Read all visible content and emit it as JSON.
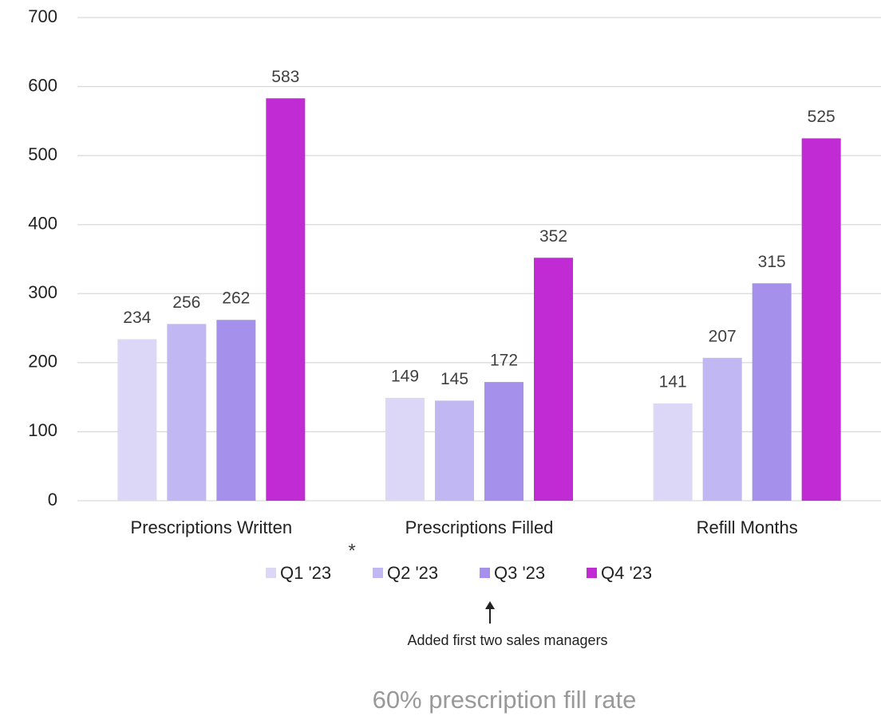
{
  "chart_data": {
    "type": "bar",
    "categories": [
      "Prescriptions Written",
      "Prescriptions Filled",
      "Refill Months"
    ],
    "series": [
      {
        "name": "Q1 '23",
        "color": "#dcd7f7",
        "values": [
          234,
          149,
          141
        ]
      },
      {
        "name": "Q2 '23",
        "color": "#c1b7f2",
        "values": [
          256,
          145,
          207
        ]
      },
      {
        "name": "Q3 '23",
        "color": "#a590ec",
        "values": [
          262,
          172,
          315
        ]
      },
      {
        "name": "Q4 '23",
        "color": "#c12bd3",
        "values": [
          583,
          352,
          525
        ]
      }
    ],
    "ylim": [
      0,
      700
    ],
    "yticks": [
      0,
      100,
      200,
      300,
      400,
      500,
      600,
      700
    ],
    "grid": true,
    "legend": "bottom",
    "annotations": [
      "*",
      "Added first two sales managers",
      "60% prescription fill rate"
    ]
  }
}
